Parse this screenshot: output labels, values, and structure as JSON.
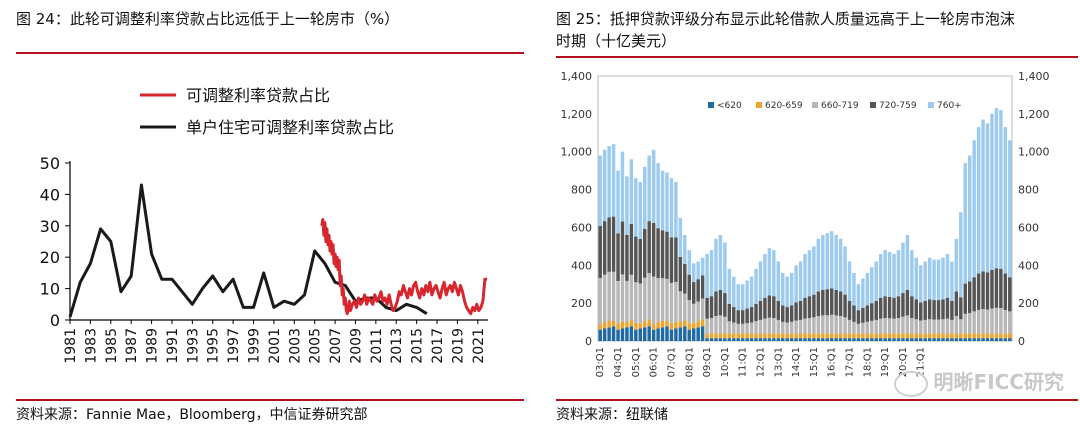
{
  "left": {
    "title": "图 24：此轮可调整利率贷款占比远低于上一轮房市（%）",
    "source": "资料来源：Fannie Mae，Bloomberg，中信证券研究部"
  },
  "right": {
    "title_line1": "图 25：抵押贷款评级分布显示此轮借款人质量远高于上一轮房市泡沫",
    "title_line2": "时期（十亿美元）",
    "source": "资料来源：纽联储",
    "watermark": "明晰FICC研究"
  },
  "colors": {
    "accent_rule": "#b3121b",
    "red_series": "#d7262e",
    "black_series": "#1a1a1a",
    "bar_lt620": "#1f6aa5",
    "bar_620_659": "#f0a430",
    "bar_660_719": "#b7b7b7",
    "bar_720_759": "#555555",
    "bar_760plus": "#9ccbef"
  },
  "chart_data": [
    {
      "type": "line",
      "title": "此轮可调整利率贷款占比远低于上一轮房市（%）",
      "xlabel": "",
      "ylabel": "",
      "ylim": [
        0,
        50
      ],
      "yticks": [
        "0",
        "10",
        "20",
        "30",
        "40",
        "50"
      ],
      "xticks": [
        "1981",
        "1983",
        "1985",
        "1987",
        "1989",
        "1991",
        "1993",
        "1995",
        "1997",
        "1999",
        "2001",
        "2003",
        "2005",
        "2007",
        "2009",
        "2011",
        "2013",
        "2015",
        "2017",
        "2019",
        "2021"
      ],
      "legend_position": "top",
      "series": [
        {
          "name": "可调整利率贷款占比",
          "color": "#d7262e",
          "x": [
            2005.7,
            2005.8,
            2005.9,
            2006.0,
            2006.1,
            2006.2,
            2006.3,
            2006.4,
            2006.5,
            2006.6,
            2006.7,
            2006.8,
            2006.9,
            2007.0,
            2007.1,
            2007.2,
            2007.3,
            2007.4,
            2007.5,
            2007.6,
            2007.7,
            2007.8,
            2007.9,
            2008.0,
            2008.1,
            2008.2,
            2008.3,
            2008.4,
            2008.5,
            2008.7,
            2008.9,
            2009.1,
            2009.3,
            2009.5,
            2009.7,
            2009.9,
            2010.1,
            2010.3,
            2010.5,
            2010.7,
            2010.9,
            2011.1,
            2011.3,
            2011.5,
            2011.7,
            2011.9,
            2012.1,
            2012.3,
            2012.5,
            2012.7,
            2012.9,
            2013.1,
            2013.3,
            2013.5,
            2013.7,
            2013.9,
            2014.1,
            2014.3,
            2014.5,
            2014.7,
            2014.9,
            2015.1,
            2015.3,
            2015.5,
            2015.7,
            2015.9,
            2016.1,
            2016.3,
            2016.5,
            2016.7,
            2016.9,
            2017.1,
            2017.3,
            2017.5,
            2017.7,
            2017.9,
            2018.1,
            2018.3,
            2018.5,
            2018.7,
            2018.9,
            2019.1,
            2019.3,
            2019.5,
            2019.7,
            2019.9,
            2020.1,
            2020.3,
            2020.5,
            2020.7,
            2020.9,
            2021.1,
            2021.3,
            2021.5,
            2021.7,
            2021.9
          ],
          "values": [
            30,
            32,
            27,
            31,
            25,
            29,
            24,
            27,
            22,
            25,
            21,
            24,
            18,
            21,
            17,
            20,
            16,
            19,
            11,
            14,
            8,
            10,
            5,
            7,
            3,
            2,
            4,
            6,
            3,
            5,
            6,
            4,
            7,
            5,
            6,
            8,
            5,
            7,
            6,
            5,
            8,
            6,
            7,
            9,
            6,
            7,
            5,
            8,
            5,
            3,
            4,
            6,
            9,
            8,
            11,
            9,
            7,
            10,
            8,
            11,
            12,
            9,
            7,
            10,
            8,
            11,
            9,
            12,
            8,
            10,
            11,
            9,
            7,
            10,
            12,
            8,
            10,
            11,
            9,
            12,
            10,
            8,
            11,
            9,
            6,
            4,
            3,
            2,
            4,
            3,
            5,
            3,
            4,
            6,
            13,
            13
          ]
        },
        {
          "name": "单户住宅可调整利率贷款占比",
          "color": "#1a1a1a",
          "x": [
            1981,
            1982,
            1983,
            1984,
            1985,
            1986,
            1987,
            1988,
            1989,
            1990,
            1991,
            1992,
            1993,
            1994,
            1995,
            1996,
            1997,
            1998,
            1999,
            2000,
            2001,
            2002,
            2003,
            2004,
            2005,
            2006,
            2007,
            2008,
            2009,
            2010,
            2011,
            2012,
            2013,
            2014,
            2015,
            2016
          ],
          "values": [
            1,
            12,
            18,
            29,
            25,
            9,
            14,
            43,
            21,
            13,
            13,
            9,
            5,
            10,
            14,
            9,
            13,
            4,
            4,
            15,
            4,
            6,
            5,
            8,
            22,
            18,
            12,
            11,
            6,
            7,
            7,
            4,
            3,
            5,
            4,
            2
          ]
        }
      ]
    },
    {
      "type": "bar",
      "stacked": true,
      "title": "抵押贷款评级分布显示此轮借款人质量远高于上一轮房市泡沫时期（十亿美元）",
      "ylim": [
        0,
        1400
      ],
      "yticks": [
        "0",
        "200",
        "400",
        "600",
        "800",
        "1,000",
        "1,200",
        "1,400"
      ],
      "xticks": [
        "03:Q1",
        "04:Q1",
        "05:Q1",
        "06:Q1",
        "07:Q1",
        "08:Q1",
        "09:Q1",
        "10:Q1",
        "11:Q1",
        "12:Q1",
        "13:Q1",
        "14:Q1",
        "15:Q1",
        "16:Q1",
        "17:Q1",
        "18:Q1",
        "19:Q1",
        "20:Q1",
        "21:Q1"
      ],
      "legend_position": "top-left",
      "series_names": [
        "<620",
        "620-659",
        "660-719",
        "720-759",
        "760+"
      ],
      "totals": [
        980,
        1010,
        1030,
        1040,
        900,
        1000,
        870,
        960,
        860,
        840,
        920,
        980,
        1010,
        940,
        900,
        890,
        860,
        840,
        650,
        560,
        480,
        410,
        420,
        440,
        460,
        480,
        540,
        560,
        520,
        380,
        340,
        300,
        300,
        320,
        340,
        380,
        420,
        460,
        490,
        480,
        420,
        360,
        340,
        360,
        400,
        420,
        460,
        480,
        500,
        540,
        560,
        570,
        580,
        560,
        540,
        500,
        420,
        360,
        300,
        330,
        360,
        390,
        420,
        460,
        480,
        470,
        460,
        480,
        520,
        560,
        480,
        440,
        400,
        420,
        440,
        430,
        430,
        440,
        460,
        420,
        540,
        680,
        940,
        980,
        1060,
        1130,
        1170,
        1150,
        1200,
        1230,
        1220,
        1130,
        1060
      ]
    }
  ]
}
